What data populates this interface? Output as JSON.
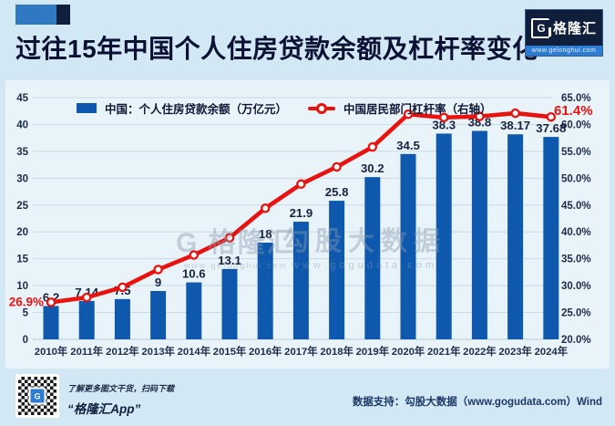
{
  "header": {
    "title": "过往15年中国个人住房贷款余额及杠杆率变化",
    "logo": {
      "glyph": "G",
      "name": "格隆汇",
      "url": "www.gelonghui.com"
    }
  },
  "legend": {
    "bars_label": "中国：个人住房贷款余额（万亿元）",
    "line_label": "中国居民部门杠杆率（右轴）"
  },
  "chart_data": {
    "type": "bar+line combo",
    "categories": [
      "2010年",
      "2011年",
      "2012年",
      "2013年",
      "2014年",
      "2015年",
      "2016年",
      "2017年",
      "2018年",
      "2019年",
      "2020年",
      "2021年",
      "2022年",
      "2023年",
      "2024年"
    ],
    "series": [
      {
        "name": "中国：个人住房贷款余额（万亿元）",
        "type": "bar",
        "axis": "left",
        "values": [
          6.2,
          7.14,
          7.5,
          9,
          10.6,
          13.1,
          18,
          21.9,
          25.8,
          30.2,
          34.5,
          38.3,
          38.8,
          38.17,
          37.68
        ],
        "labels": [
          "6.2",
          "7.14",
          "7.5",
          "9",
          "10.6",
          "13.1",
          "18",
          "21.9",
          "25.8",
          "30.2",
          "34.5",
          "38.3",
          "38.8",
          "38.17",
          "37.68"
        ]
      },
      {
        "name": "中国居民部门杠杆率（右轴）",
        "type": "line",
        "axis": "right",
        "values_pct": [
          26.9,
          27.8,
          29.7,
          33.0,
          35.7,
          38.9,
          44.4,
          48.9,
          52.1,
          55.8,
          61.9,
          61.3,
          61.5,
          62.1,
          61.4
        ],
        "note": "only first (26.9%) and last (61.4%) points are labeled on the chart; interior values estimated from line position"
      }
    ],
    "left_axis": {
      "min": 0,
      "max": 45,
      "step": 5,
      "tick_labels": [
        "0",
        "5",
        "10",
        "15",
        "20",
        "25",
        "30",
        "35",
        "40",
        "45"
      ]
    },
    "right_axis": {
      "min": 20,
      "max": 65,
      "step": 5,
      "format": "percent",
      "tick_labels": [
        "20.0%",
        "25.0%",
        "30.0%",
        "35.0%",
        "40.0%",
        "45.0%",
        "50.0%",
        "55.0%",
        "60.0%",
        "65.0%"
      ]
    },
    "annotations": {
      "first_point_label": "26.9%",
      "last_point_label": "61.4%"
    },
    "grid": "horizontal",
    "legend_position": "top-left-inside",
    "colors": {
      "bar": "#0e59ae",
      "line": "#e8120f",
      "axis_text": "#1c2b4a",
      "bar_label": "#16233f",
      "grid": "#c9d9e5"
    }
  },
  "watermarks": {
    "left": {
      "main": "G 格隆汇",
      "sub": "www.gelonghui.com"
    },
    "right": {
      "main": "勾股大数据",
      "sub": "www.gogudata.com"
    }
  },
  "footer": {
    "qr_glyph": "G",
    "tip_line": "了解更多图文干货，扫码下载",
    "app_line": "“格隆汇App”",
    "credit": "数据支持：勾股大数据（www.gogudata.com）Wind"
  }
}
